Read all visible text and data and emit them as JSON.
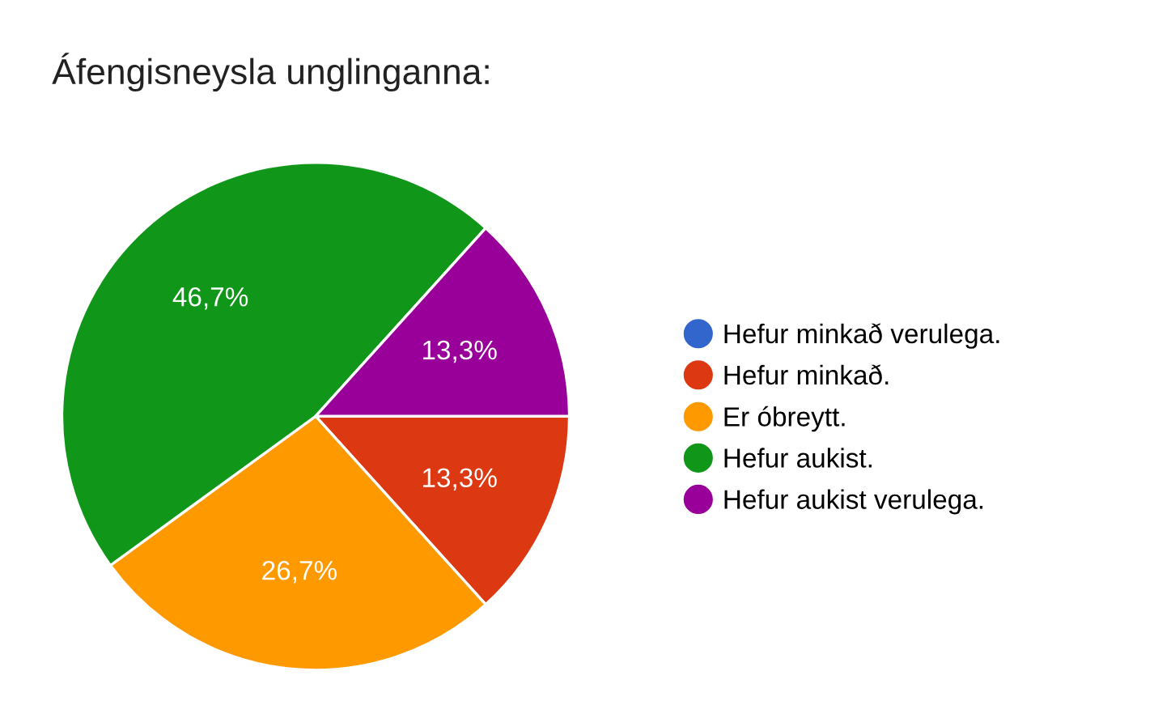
{
  "chart_data": {
    "type": "pie",
    "title": "Áfengisneysla unglinganna:",
    "categories": [
      "Hefur minkað verulega.",
      "Hefur minkað.",
      "Er óbreytt.",
      "Hefur aukist.",
      "Hefur aukist verulega."
    ],
    "values": [
      0,
      13.3,
      26.7,
      46.7,
      13.3
    ],
    "colors": [
      "#3366cc",
      "#dc3912",
      "#ff9900",
      "#109618",
      "#990099"
    ],
    "value_labels": [
      null,
      "13,3%",
      "26,7%",
      "46,7%",
      "13,3%"
    ],
    "legend": "right"
  }
}
